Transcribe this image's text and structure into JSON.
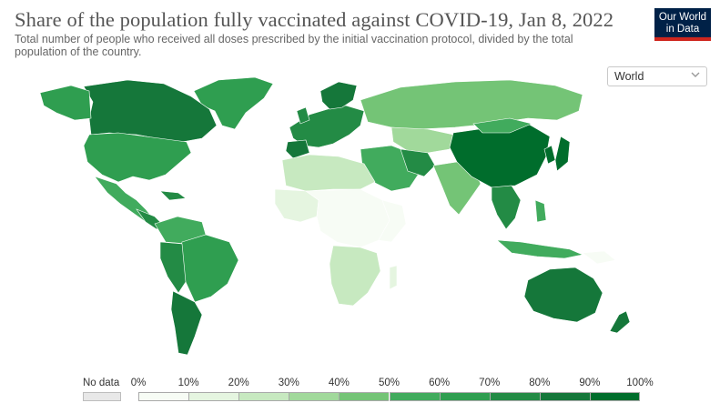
{
  "title": "Share of the population fully vaccinated against COVID-19, Jan 8, 2022",
  "subtitle": "Total number of people who received all doses prescribed by the initial vaccination protocol, divided by the total population of the country.",
  "logo": {
    "line1": "Our World",
    "line2": "in Data"
  },
  "region_select": {
    "value": "World"
  },
  "legend": {
    "no_data_label": "No data",
    "no_data_color": "#e8e8e8",
    "scale_labels": [
      "0%",
      "10%",
      "20%",
      "30%",
      "40%",
      "50%",
      "60%",
      "70%",
      "80%",
      "90%",
      "100%"
    ],
    "colors": [
      "#f7fcf5",
      "#e5f5e0",
      "#c7e9c0",
      "#a1d99b",
      "#74c476",
      "#41ab5d",
      "#2f9e50",
      "#238b45",
      "#15773a",
      "#006d2c"
    ]
  },
  "map_regions": [
    {
      "region": "North America",
      "share_bin": "60-70%"
    },
    {
      "region": "Canada",
      "share_bin": "70-80%"
    },
    {
      "region": "South America",
      "share_bin": "60-80%"
    },
    {
      "region": "Europe",
      "share_bin": "60-80%"
    },
    {
      "region": "Russia",
      "share_bin": "40-50%"
    },
    {
      "region": "Africa",
      "share_bin": "0-10%"
    },
    {
      "region": "Middle East",
      "share_bin": "50-70%"
    },
    {
      "region": "India",
      "share_bin": "40-50%"
    },
    {
      "region": "China",
      "share_bin": "80-90%"
    },
    {
      "region": "Southeast Asia",
      "share_bin": "50-80%"
    },
    {
      "region": "Australia",
      "share_bin": "70-80%"
    },
    {
      "region": "Greenland",
      "share_bin": "60-70%"
    }
  ]
}
